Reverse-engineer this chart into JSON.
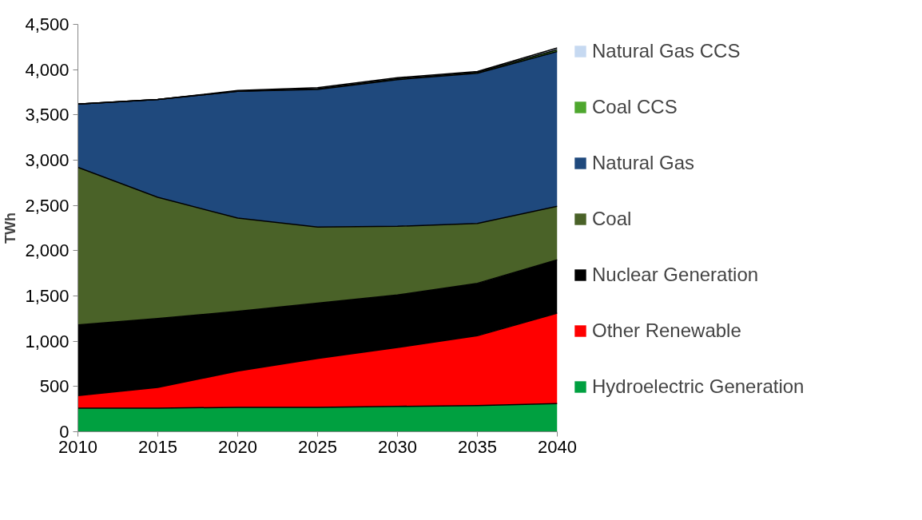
{
  "chart_data": {
    "type": "area",
    "stacked": true,
    "ylabel": "TWh",
    "x": [
      2010,
      2015,
      2020,
      2025,
      2030,
      2035,
      2040
    ],
    "xlim": [
      2010,
      2040
    ],
    "xticks": [
      2010,
      2015,
      2020,
      2025,
      2030,
      2035,
      2040
    ],
    "ylim": [
      0,
      4500
    ],
    "yticks": [
      0,
      500,
      {
        "value": 1000,
        "label": "1,000"
      },
      {
        "value": 1500,
        "label": "1,500"
      },
      {
        "value": 2000,
        "label": "2,000"
      },
      {
        "value": 2500,
        "label": "2,500"
      },
      {
        "value": 3000,
        "label": "3,000"
      },
      {
        "value": 3500,
        "label": "3,500"
      },
      {
        "value": 4000,
        "label": "4,000"
      },
      {
        "value": 4500,
        "label": "4,500"
      }
    ],
    "grid": false,
    "legend": "right",
    "series": [
      {
        "name": "Hydroelectric Generation",
        "color": "#00a040",
        "values": [
          260,
          260,
          270,
          270,
          280,
          290,
          310
        ]
      },
      {
        "name": "Other Renewable",
        "color": "#ff0000",
        "values": [
          140,
          230,
          400,
          540,
          650,
          770,
          1000
        ]
      },
      {
        "name": "Nuclear Generation",
        "color": "#000000",
        "values": [
          780,
          760,
          660,
          610,
          580,
          580,
          590
        ]
      },
      {
        "name": "Coal",
        "color": "#4a6228",
        "values": [
          1740,
          1340,
          1030,
          840,
          760,
          660,
          590
        ]
      },
      {
        "name": "Natural Gas",
        "color": "#1f497d",
        "values": [
          700,
          1080,
          1400,
          1520,
          1620,
          1660,
          1710
        ]
      },
      {
        "name": "Coal CCS",
        "color": "#4ea72e",
        "values": [
          0,
          0,
          0,
          10,
          10,
          10,
          20
        ]
      },
      {
        "name": "Natural Gas CCS",
        "color": "#c6d9f1",
        "values": [
          0,
          0,
          10,
          10,
          10,
          10,
          20
        ]
      }
    ]
  }
}
